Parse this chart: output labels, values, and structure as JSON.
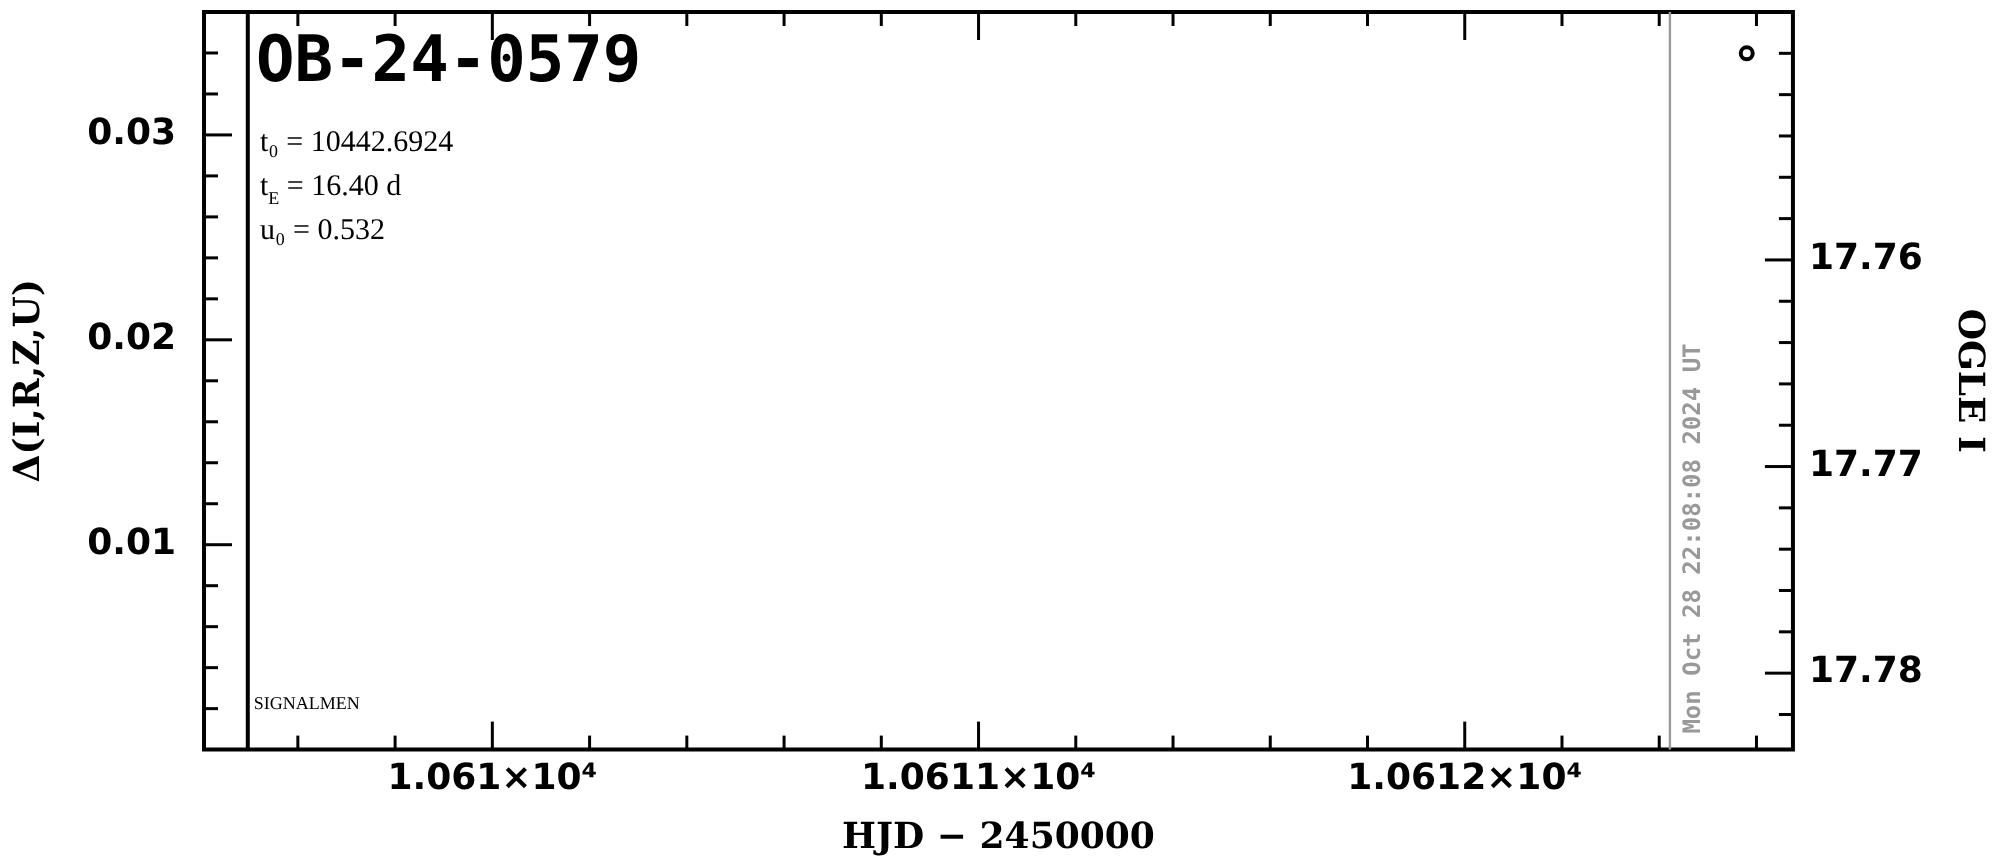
{
  "chart_data": {
    "type": "scatter",
    "title": "OB-24-0579",
    "xlabel": "HJD − 2450000",
    "ylabel": "Δ(I,R,Z,U)",
    "y2label": "OGLE I",
    "annotations": [
      "t₀ = 10442.6924",
      "t$_{E}$ = 16.40 d",
      "u₀ = 0.532",
      "Mon Oct 28 22:08:08 2024 UT"
    ],
    "xlim": [
      10609.407,
      10612.675
    ],
    "xticks": [
      {
        "value": 10609.6,
        "label": null
      },
      {
        "value": 10609.8,
        "label": null
      },
      {
        "value": 10610,
        "label": "1.061×10⁴"
      },
      {
        "value": 10610.2,
        "label": null
      },
      {
        "value": 10610.4,
        "label": null
      },
      {
        "value": 10610.6,
        "label": null
      },
      {
        "value": 10610.8,
        "label": null
      },
      {
        "value": 10611,
        "label": "1.0611×10⁴"
      },
      {
        "value": 10611.2,
        "label": null
      },
      {
        "value": 10611.4,
        "label": null
      },
      {
        "value": 10611.6,
        "label": null
      },
      {
        "value": 10611.8,
        "label": null
      },
      {
        "value": 10612,
        "label": "1.0612×10⁴"
      },
      {
        "value": 10612.2,
        "label": null
      },
      {
        "value": 10612.4,
        "label": null
      },
      {
        "value": 10612.6,
        "label": null
      }
    ],
    "ylim": [
      0,
      0.036
    ],
    "yticks": [
      {
        "value": 0.002,
        "label": null
      },
      {
        "value": 0.004,
        "label": null
      },
      {
        "value": 0.006,
        "label": null
      },
      {
        "value": 0.008,
        "label": null
      },
      {
        "value": 0.01,
        "label": "0.01"
      },
      {
        "value": 0.012,
        "label": null
      },
      {
        "value": 0.014,
        "label": null
      },
      {
        "value": 0.016,
        "label": null
      },
      {
        "value": 0.018,
        "label": null
      },
      {
        "value": 0.02,
        "label": "0.02"
      },
      {
        "value": 0.022,
        "label": null
      },
      {
        "value": 0.024,
        "label": null
      },
      {
        "value": 0.026,
        "label": null
      },
      {
        "value": 0.028,
        "label": null
      },
      {
        "value": 0.03,
        "label": "0.03"
      },
      {
        "value": 0.032,
        "label": null
      },
      {
        "value": 0.034,
        "label": null
      }
    ],
    "y2lim": [
      17.7837,
      17.748
    ],
    "y2ticks": [
      {
        "value": 17.782,
        "label": null
      },
      {
        "value": 17.78,
        "label": "17.78"
      },
      {
        "value": 17.778,
        "label": null
      },
      {
        "value": 17.776,
        "label": null
      },
      {
        "value": 17.774,
        "label": null
      },
      {
        "value": 17.772,
        "label": null
      },
      {
        "value": 17.77,
        "label": "17.77"
      },
      {
        "value": 17.768,
        "label": null
      },
      {
        "value": 17.766,
        "label": null
      },
      {
        "value": 17.764,
        "label": null
      },
      {
        "value": 17.762,
        "label": null
      },
      {
        "value": 17.76,
        "label": "17.76"
      },
      {
        "value": 17.758,
        "label": null
      },
      {
        "value": 17.756,
        "label": null
      },
      {
        "value": 17.754,
        "label": null
      },
      {
        "value": 17.752,
        "label": null
      },
      {
        "value": 17.75,
        "label": null
      }
    ],
    "series": [
      {
        "axis": "y2",
        "color": "#000000",
        "x": [
          10612.58
        ],
        "values": [
          17.75
        ]
      }
    ],
    "marker": "circle",
    "grid": false,
    "legend": false,
    "ref_lines": [
      {
        "axis": "x",
        "value": 10609.497,
        "label": "SIGNALMEN",
        "color": "#000000"
      },
      {
        "axis": "x",
        "value": 10612.422,
        "color": "#999999"
      }
    ]
  }
}
